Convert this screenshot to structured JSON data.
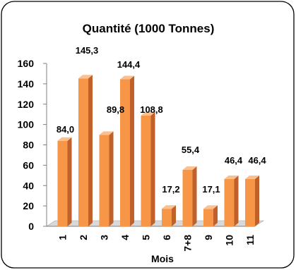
{
  "chart_data": {
    "type": "bar",
    "title": "Quantité (1000 Tonnes)",
    "xlabel": "Mois",
    "ylabel": "",
    "categories": [
      "1",
      "2",
      "3",
      "4",
      "5",
      "6",
      "7+8",
      "9",
      "10",
      "11"
    ],
    "values": [
      84.0,
      145.3,
      89.8,
      144.4,
      108.8,
      17.2,
      55.4,
      17.1,
      46.4,
      46.4
    ],
    "data_labels": [
      "84,0",
      "145,3",
      "89,8",
      "144,4",
      "108,8",
      "17,2",
      "55,4",
      "17,1",
      "46,4",
      "46,4"
    ],
    "yticks": [
      "0",
      "20",
      "40",
      "60",
      "80",
      "100",
      "120",
      "140",
      "160"
    ],
    "ylim": [
      0,
      160
    ],
    "grid": false,
    "legend": "none",
    "bar_color_front": "#f79646",
    "bar_color_side": "#c0612b",
    "bar_color_top": "#fac090"
  }
}
